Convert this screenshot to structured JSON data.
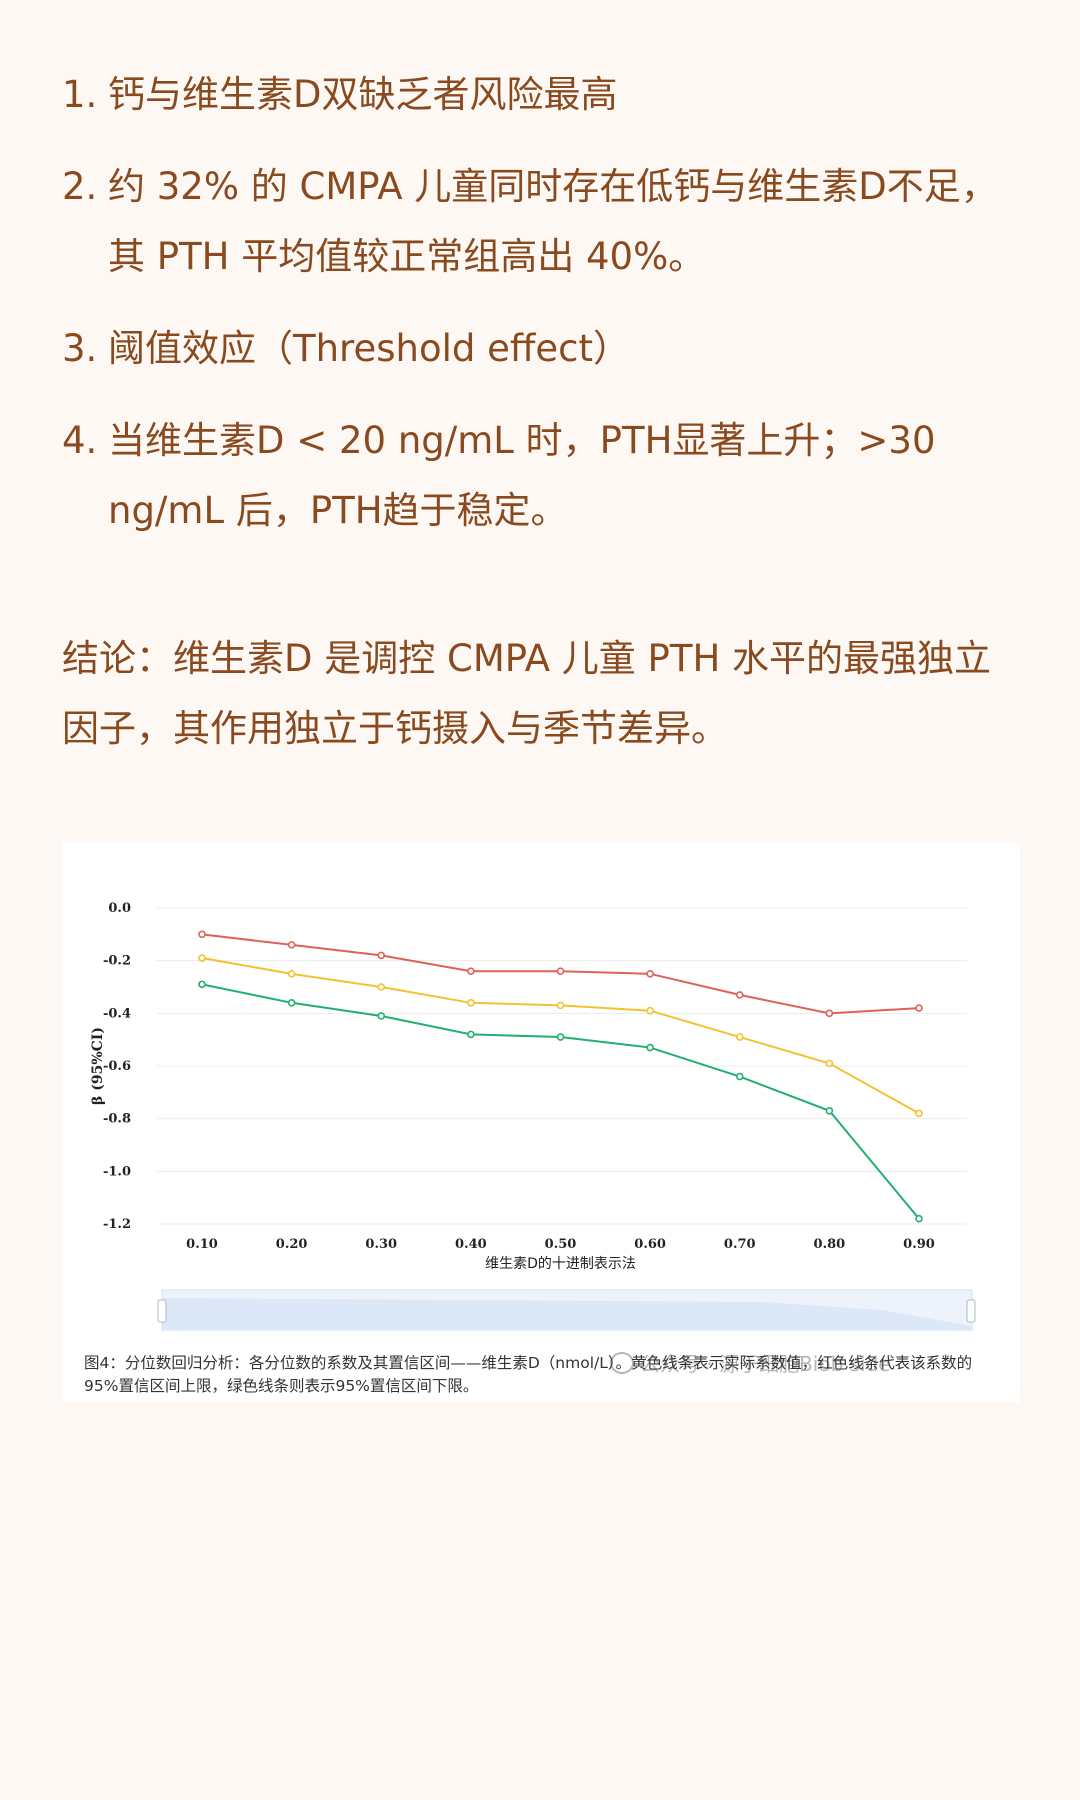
{
  "list": [
    {
      "num": "1.",
      "text": "钙与维生素D双缺乏者风险最高"
    },
    {
      "num": "2.",
      "text": "约 32% 的 CMPA 儿童同时存在低钙与维生素D不足，其 PTH 平均值较正常组高出 40%。"
    },
    {
      "num": "3.",
      "text": "阈值效应（Threshold effect）"
    },
    {
      "num": "4.",
      "text": "当维生素D < 20 ng/mL 时，PTH显著上升；>30 ng/mL 后，PTH趋于稳定。"
    }
  ],
  "conclusion": "结论：维生素D 是调控 CMPA 儿童 PTH 水平的最强独立因子，其作用独立于钙摄入与季节差异。",
  "figure": {
    "caption": "图4：分位数回归分析：各分位数的系数及其置信区间——维生素D（nmol/L）。黄色线条表示实际系数值，红色线条代表该系数的95%置信区间上限，绿色线条则表示95%置信区间下限。",
    "watermark": "公众号 · 源于细胞Biob side"
  },
  "chart_data": {
    "type": "line",
    "x": [
      0.1,
      0.2,
      0.3,
      0.4,
      0.5,
      0.6,
      0.7,
      0.8,
      0.9
    ],
    "x_tick_labels": [
      "0.10",
      "0.20",
      "0.30",
      "0.40",
      "0.50",
      "0.60",
      "0.70",
      "0.80",
      "0.90"
    ],
    "xlabel": "维生素D的十进制表示法",
    "ylabel": "β (95%CI)",
    "ylim": [
      -1.2,
      0.0
    ],
    "y_ticks": [
      0.0,
      -0.2,
      -0.4,
      -0.6,
      -0.8,
      -1.0,
      -1.2
    ],
    "y_tick_labels": [
      "0.0",
      "-0.2",
      "-0.4",
      "-0.6",
      "-0.8",
      "-1.0",
      "-1.2"
    ],
    "grid": true,
    "series": [
      {
        "color": "#e0605a",
        "values": [
          -0.1,
          -0.14,
          -0.18,
          -0.24,
          -0.24,
          -0.25,
          -0.33,
          -0.4,
          -0.38
        ]
      },
      {
        "color": "#f2c230",
        "values": [
          -0.19,
          -0.25,
          -0.3,
          -0.36,
          -0.37,
          -0.39,
          -0.49,
          -0.59,
          -0.78
        ]
      },
      {
        "color": "#20b070",
        "values": [
          -0.29,
          -0.36,
          -0.41,
          -0.48,
          -0.49,
          -0.53,
          -0.64,
          -0.77,
          -1.18
        ]
      }
    ]
  }
}
